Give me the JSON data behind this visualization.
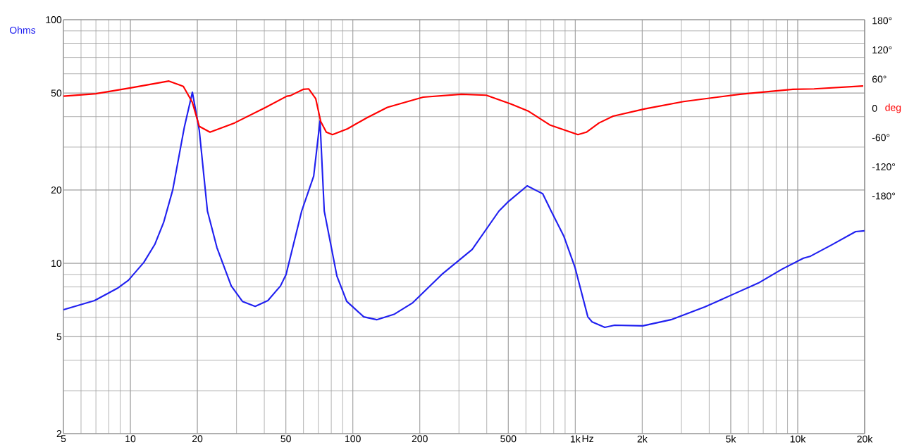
{
  "chart_data": {
    "type": "line",
    "log": "xy",
    "grid": true,
    "xlim": [
      5,
      20000
    ],
    "ylim": [
      2,
      100
    ],
    "y2lim": [
      -668,
      182
    ],
    "xticks": [
      5,
      10,
      20,
      50,
      100,
      200,
      500,
      {
        "value": 1000,
        "label": "1k"
      },
      {
        "value": 2000,
        "label": "2k"
      },
      {
        "value": 5000,
        "label": "5k"
      },
      {
        "value": 10000,
        "label": "10k"
      },
      {
        "value": 20000,
        "label": "20k"
      }
    ],
    "yticks": [
      2,
      5,
      10,
      20,
      50,
      100
    ],
    "y2ticks": [
      {
        "value": 180,
        "label": "180°"
      },
      {
        "value": 120,
        "label": "120°"
      },
      {
        "value": 60,
        "label": "60°"
      },
      0,
      {
        "value": -60,
        "label": "-60°"
      },
      {
        "value": -120,
        "label": "-120°"
      },
      {
        "value": -180,
        "label": "-180°"
      }
    ],
    "xlabel": "Hz",
    "ylabel": "Ohms",
    "y2label": "deg",
    "series": [
      {
        "color": "#2020f0",
        "x": [
          5,
          6.9,
          8.8,
          9.8,
          11.5,
          12.9,
          14.1,
          15.5,
          17.5,
          19.0,
          20.4,
          22.2,
          24.5,
          28.4,
          31.9,
          36.4,
          41.5,
          47.3,
          50.1,
          58.9,
          66.7,
          71.2,
          74.4,
          84.8,
          93.9,
          112,
          128,
          154,
          186,
          251,
          344,
          454,
          496,
          608,
          714,
          779,
          889,
          998,
          1139,
          1190,
          1357,
          1503,
          2012,
          2694,
          3822,
          5118,
          6655,
          8529,
          10615,
          11420,
          14212,
          18216,
          20000
        ],
        "values": [
          6.45,
          7.03,
          7.93,
          8.52,
          10.1,
          12.0,
          14.7,
          20.0,
          36.4,
          50.4,
          35.2,
          16.4,
          11.6,
          8.08,
          6.98,
          6.66,
          7.03,
          8.08,
          9.0,
          16.4,
          22.8,
          38.4,
          16.4,
          8.87,
          6.98,
          6.03,
          5.87,
          6.19,
          6.89,
          9.0,
          11.4,
          16.4,
          17.8,
          20.8,
          19.3,
          16.4,
          12.9,
          9.6,
          6.03,
          5.75,
          5.46,
          5.57,
          5.54,
          5.87,
          6.62,
          7.46,
          8.3,
          9.48,
          10.5,
          10.7,
          11.9,
          13.5,
          13.6
        ]
      },
      {
        "color": "#ff0000",
        "axis": "y2",
        "x": [
          5,
          7.0,
          10,
          14.9,
          17.3,
          19.0,
          20.4,
          22.8,
          29.4,
          40.6,
          50.5,
          52.4,
          59.8,
          63.3,
          68.1,
          71.7,
          76,
          81,
          94.6,
          115,
          143,
          207,
          308,
          398,
          514,
          617,
          768,
          1028,
          1122,
          1279,
          1480,
          2056,
          3070,
          5507,
          9510,
          11850,
          19700
        ],
        "values": [
          25,
          30,
          42,
          56,
          45,
          12,
          -37,
          -49,
          -30,
          2,
          25,
          26,
          39,
          40,
          20,
          -27,
          -49,
          -54,
          -42,
          -20,
          2,
          23,
          29,
          27,
          9,
          -6,
          -34,
          -54,
          -49,
          -30,
          -16,
          -1,
          14,
          29,
          39,
          40,
          46
        ]
      }
    ]
  }
}
